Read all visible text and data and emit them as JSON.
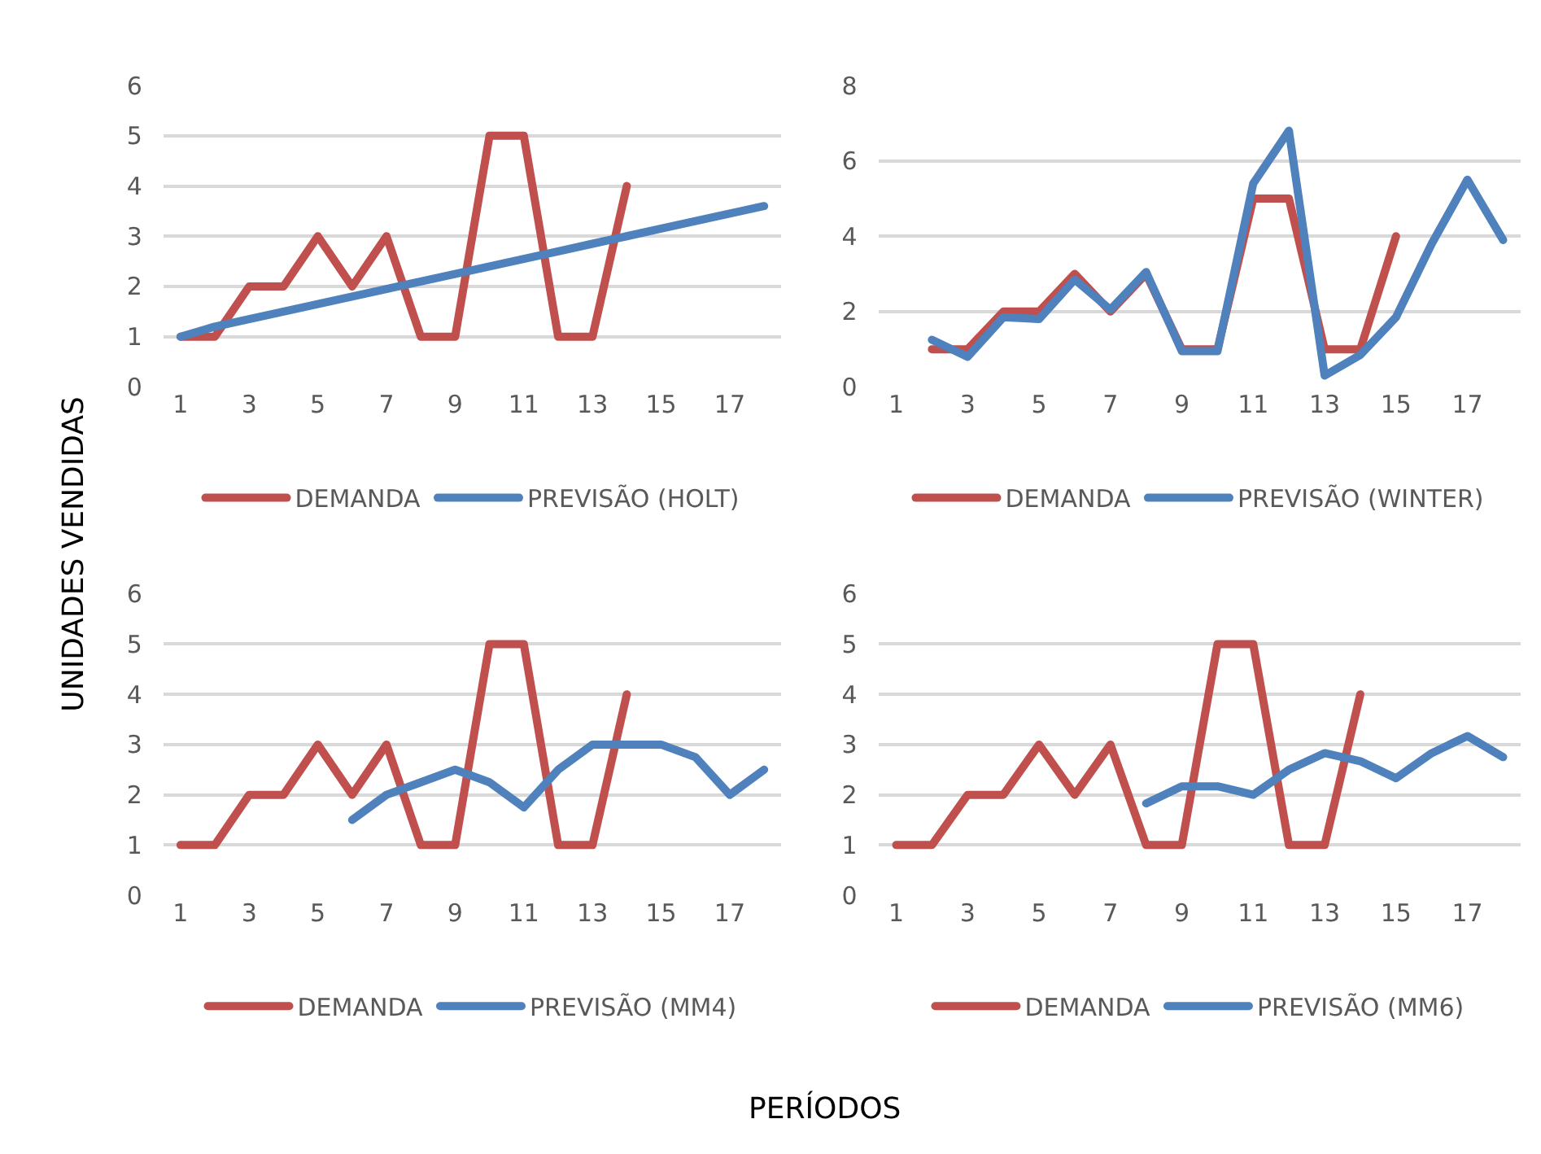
{
  "chart_data": [
    {
      "type": "line",
      "ylabel": "UNIDADES VENDIDAS",
      "xlim": [
        0.5,
        18.5
      ],
      "xticks": [
        1,
        3,
        5,
        7,
        9,
        11,
        13,
        15,
        17
      ],
      "ylim": [
        0,
        6
      ],
      "yticks": [
        0,
        1,
        2,
        3,
        4,
        5,
        6
      ],
      "grid": "y",
      "legend": "bottom",
      "series": [
        {
          "name": "DEMANDA",
          "color": "#c0504d",
          "x": [
            1,
            2,
            3,
            4,
            5,
            6,
            7,
            8,
            9,
            10,
            11,
            12,
            13,
            14
          ],
          "values": [
            1,
            1,
            2,
            2,
            3,
            2,
            3,
            1,
            1,
            5,
            5,
            1,
            1,
            4
          ]
        },
        {
          "name": "PREVISÃO (HOLT)",
          "color": "#4f81bd",
          "x": [
            1,
            2,
            3,
            4,
            5,
            6,
            7,
            8,
            9,
            10,
            11,
            12,
            13,
            14,
            15,
            16,
            17,
            18
          ],
          "values": [
            1,
            1.2,
            1.35,
            1.5,
            1.65,
            1.8,
            1.95,
            2.1,
            2.25,
            2.4,
            2.55,
            2.7,
            2.85,
            3.0,
            3.15,
            3.3,
            3.45,
            3.6
          ]
        }
      ]
    },
    {
      "type": "line",
      "xlim": [
        0.5,
        18.5
      ],
      "xticks": [
        1,
        3,
        5,
        7,
        9,
        11,
        13,
        15,
        17
      ],
      "ylim": [
        0,
        8
      ],
      "yticks": [
        0,
        2,
        4,
        6,
        8
      ],
      "grid": "y",
      "legend": "bottom",
      "series": [
        {
          "name": "DEMANDA",
          "color": "#c0504d",
          "x": [
            2,
            3,
            4,
            5,
            6,
            7,
            8,
            9,
            10,
            11,
            12,
            13,
            14,
            15
          ],
          "values": [
            1,
            1,
            2,
            2,
            3,
            2,
            3,
            1,
            1,
            5,
            5,
            1,
            1,
            4
          ]
        },
        {
          "name": "PREVISÃO (WINTER)",
          "color": "#4f81bd",
          "x": [
            2,
            3,
            4,
            5,
            6,
            7,
            8,
            9,
            10,
            11,
            12,
            13,
            14,
            15,
            16,
            17,
            18
          ],
          "values": [
            1.25,
            0.8,
            1.85,
            1.8,
            2.85,
            2.05,
            3.05,
            0.95,
            0.95,
            5.4,
            6.8,
            0.3,
            0.85,
            1.85,
            3.8,
            5.5,
            3.9
          ]
        }
      ]
    },
    {
      "type": "line",
      "xlabel": "PERÍODOS",
      "xlim": [
        0.5,
        18.5
      ],
      "xticks": [
        1,
        3,
        5,
        7,
        9,
        11,
        13,
        15,
        17
      ],
      "ylim": [
        0,
        6
      ],
      "yticks": [
        0,
        1,
        2,
        3,
        4,
        5,
        6
      ],
      "grid": "y",
      "legend": "bottom",
      "series": [
        {
          "name": "DEMANDA",
          "color": "#c0504d",
          "x": [
            1,
            2,
            3,
            4,
            5,
            6,
            7,
            8,
            9,
            10,
            11,
            12,
            13,
            14
          ],
          "values": [
            1,
            1,
            2,
            2,
            3,
            2,
            3,
            1,
            1,
            5,
            5,
            1,
            1,
            4
          ]
        },
        {
          "name": "PREVISÃO (MM4)",
          "color": "#4f81bd",
          "x": [
            6,
            7,
            8,
            9,
            10,
            11,
            12,
            13,
            14,
            15,
            16,
            17,
            18
          ],
          "values": [
            1.5,
            2.0,
            2.25,
            2.5,
            2.25,
            1.75,
            2.5,
            3.0,
            3.0,
            3.0,
            2.75,
            2.0,
            2.5
          ]
        }
      ]
    },
    {
      "type": "line",
      "xlim": [
        0.5,
        18.5
      ],
      "xticks": [
        1,
        3,
        5,
        7,
        9,
        11,
        13,
        15,
        17
      ],
      "ylim": [
        0,
        6
      ],
      "yticks": [
        0,
        1,
        2,
        3,
        4,
        5,
        6
      ],
      "grid": "y",
      "legend": "bottom",
      "series": [
        {
          "name": "DEMANDA",
          "color": "#c0504d",
          "x": [
            1,
            2,
            3,
            4,
            5,
            6,
            7,
            8,
            9,
            10,
            11,
            12,
            13,
            14
          ],
          "values": [
            1,
            1,
            2,
            2,
            3,
            2,
            3,
            1,
            1,
            5,
            5,
            1,
            1,
            4
          ]
        },
        {
          "name": "PREVISÃO (MM6)",
          "color": "#4f81bd",
          "x": [
            8,
            9,
            10,
            11,
            12,
            13,
            14,
            15,
            16,
            17,
            18
          ],
          "values": [
            1.83,
            2.17,
            2.17,
            2.0,
            2.5,
            2.83,
            2.67,
            2.33,
            2.83,
            3.17,
            2.75
          ]
        }
      ]
    }
  ]
}
